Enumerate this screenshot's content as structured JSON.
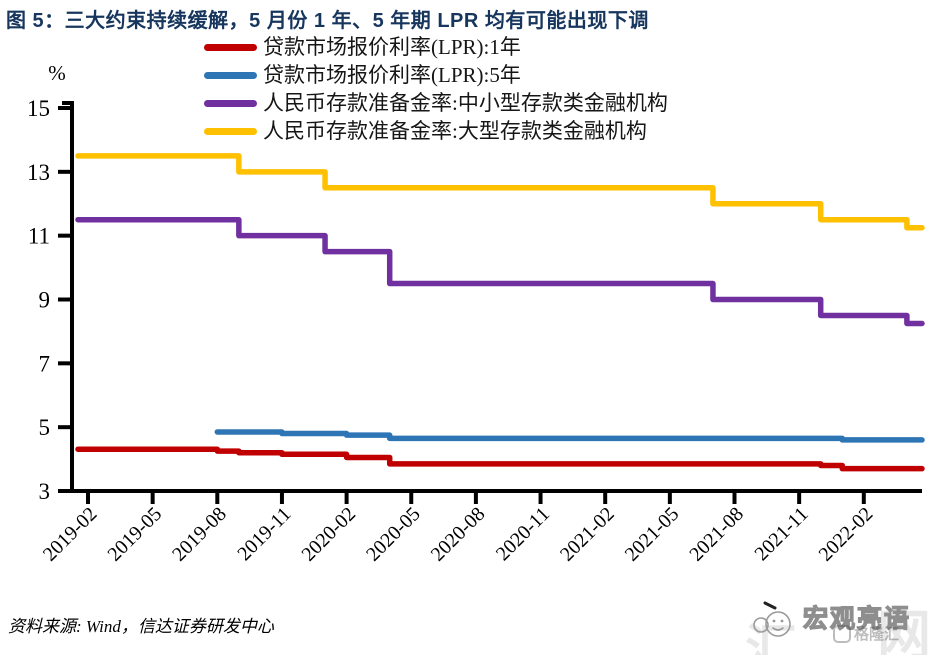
{
  "page": {
    "title": "图 5：三大约束持续缓解，5 月份 1 年、5 年期 LPR 均有可能出现下调",
    "title_color": "#17365D"
  },
  "footer": {
    "source": "资料来源: Wind，信达证券研发中心"
  },
  "watermark": {
    "brand": "宏观亮语",
    "site_char_left": "汇",
    "site_char_right": "网",
    "corner_logo": "格隆汇"
  },
  "chart_data": {
    "type": "line",
    "line_style": "step-after",
    "title": "图 5：三大约束持续缓解，5 月份 1 年、5 年期 LPR 均有可能出现下调",
    "xlabel": "",
    "ylabel": "%",
    "ylim": [
      3,
      15
    ],
    "yticks": [
      3,
      5,
      7,
      9,
      11,
      13,
      15
    ],
    "xticks": [
      "2019-02",
      "2019-05",
      "2019-08",
      "2019-11",
      "2020-02",
      "2020-05",
      "2020-08",
      "2020-11",
      "2021-02",
      "2021-05",
      "2021-08",
      "2021-11",
      "2022-02"
    ],
    "x_domain": [
      "2019-02",
      "2022-05"
    ],
    "grid": false,
    "legend_position": "top",
    "axis_color": "#000000",
    "series": [
      {
        "name": "贷款市场报价利率(LPR):1年",
        "color": "#C00000",
        "points": [
          [
            "2019-02",
            4.31
          ],
          [
            "2019-08",
            4.25
          ],
          [
            "2019-09",
            4.2
          ],
          [
            "2019-11",
            4.15
          ],
          [
            "2020-02",
            4.05
          ],
          [
            "2020-04",
            3.85
          ],
          [
            "2021-12",
            3.8
          ],
          [
            "2022-01",
            3.7
          ]
        ]
      },
      {
        "name": "贷款市场报价利率(LPR):5年",
        "color": "#2E75B6",
        "points": [
          [
            "2019-08",
            4.85
          ],
          [
            "2019-11",
            4.8
          ],
          [
            "2020-02",
            4.75
          ],
          [
            "2020-04",
            4.65
          ],
          [
            "2022-01",
            4.6
          ]
        ]
      },
      {
        "name": "人民币存款准备金率:中小型存款类金融机构",
        "color": "#7030A0",
        "points": [
          [
            "2019-02",
            11.5
          ],
          [
            "2019-09",
            11.0
          ],
          [
            "2020-01",
            10.5
          ],
          [
            "2020-04",
            9.5
          ],
          [
            "2021-07",
            9.0
          ],
          [
            "2021-12",
            8.5
          ],
          [
            "2022-04",
            8.25
          ]
        ]
      },
      {
        "name": "人民币存款准备金率:大型存款类金融机构",
        "color": "#FFC000",
        "points": [
          [
            "2019-02",
            13.5
          ],
          [
            "2019-09",
            13.0
          ],
          [
            "2020-01",
            12.5
          ],
          [
            "2021-07",
            12.0
          ],
          [
            "2021-12",
            11.5
          ],
          [
            "2022-04",
            11.25
          ]
        ]
      }
    ]
  }
}
